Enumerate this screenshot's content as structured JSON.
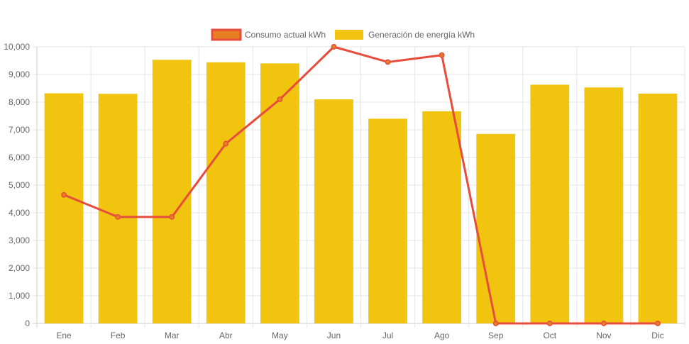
{
  "chart_data": {
    "type": "bar",
    "categories": [
      "Ene",
      "Feb",
      "Mar",
      "Abr",
      "May",
      "Jun",
      "Jul",
      "Ago",
      "Sep",
      "Oct",
      "Nov",
      "Dic"
    ],
    "series": [
      {
        "name": "Consumo actual kWh",
        "type": "line",
        "color": "#e74c3c",
        "fill": "#e67e22",
        "values": [
          4650,
          3850,
          3850,
          6500,
          8100,
          10000,
          9450,
          9700,
          0,
          0,
          0,
          0
        ]
      },
      {
        "name": "Generación de energía kWh",
        "type": "bar",
        "color": "#f1c40f",
        "values": [
          8320,
          8300,
          9530,
          9440,
          9400,
          8100,
          7400,
          7670,
          6850,
          8630,
          8530,
          8310
        ]
      }
    ],
    "ylim": [
      0,
      10000
    ],
    "yticks": [
      "0",
      "1,000",
      "2,000",
      "3,000",
      "4,000",
      "5,000",
      "6,000",
      "7,000",
      "8,000",
      "9,000",
      "10,000"
    ],
    "grid": true,
    "legend": "top-center"
  }
}
